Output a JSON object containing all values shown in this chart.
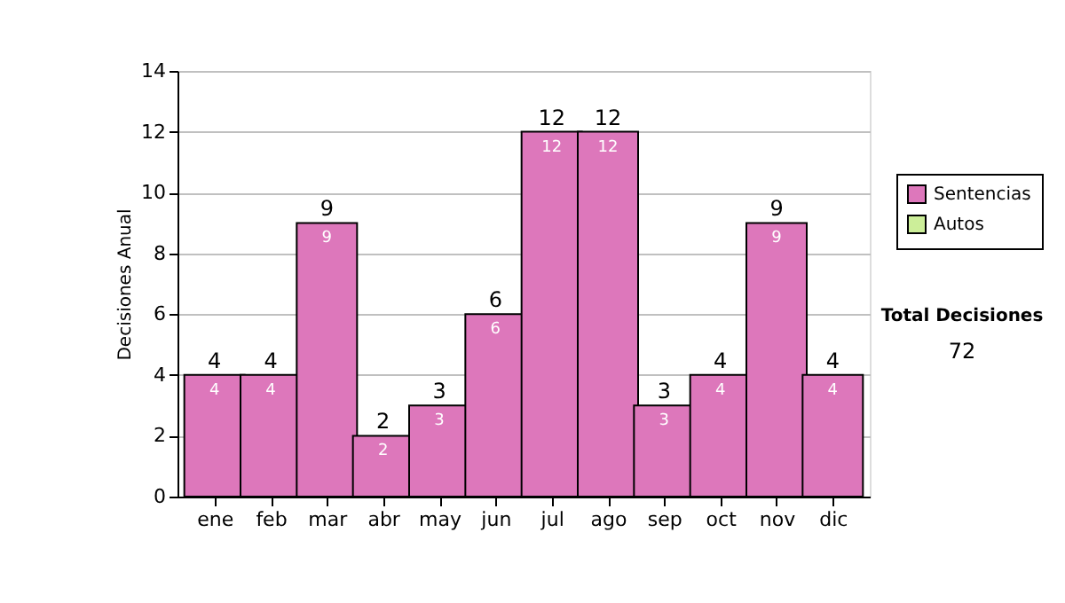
{
  "chart_data": {
    "type": "bar",
    "ylabel": "Decisiones Anual",
    "categories": [
      "ene",
      "feb",
      "mar",
      "abr",
      "may",
      "jun",
      "jul",
      "ago",
      "sep",
      "oct",
      "nov",
      "dic"
    ],
    "series": [
      {
        "name": "Sentencias",
        "color": "#dd77bb",
        "values": [
          4,
          4,
          9,
          2,
          3,
          6,
          12,
          12,
          3,
          4,
          9,
          4
        ],
        "value_labels": [
          "4",
          "4",
          "9",
          "2",
          "3",
          "6",
          "12",
          "12",
          "3",
          "4",
          "9",
          "4"
        ]
      },
      {
        "name": "Autos",
        "color": "#ccee99",
        "values": [
          0,
          0,
          0,
          0,
          0,
          0,
          0,
          0,
          0,
          0,
          0,
          0
        ]
      }
    ],
    "stacked": true,
    "totals": [
      "4",
      "4",
      "9",
      "2",
      "3",
      "6",
      "12",
      "12",
      "3",
      "4",
      "9",
      "4"
    ],
    "ylim": [
      0,
      14
    ],
    "yticks": [
      0,
      2,
      4,
      6,
      8,
      10,
      12,
      14
    ],
    "grid": "y",
    "legend": "right",
    "annotations": [
      "Total Decisiones",
      "72"
    ]
  }
}
